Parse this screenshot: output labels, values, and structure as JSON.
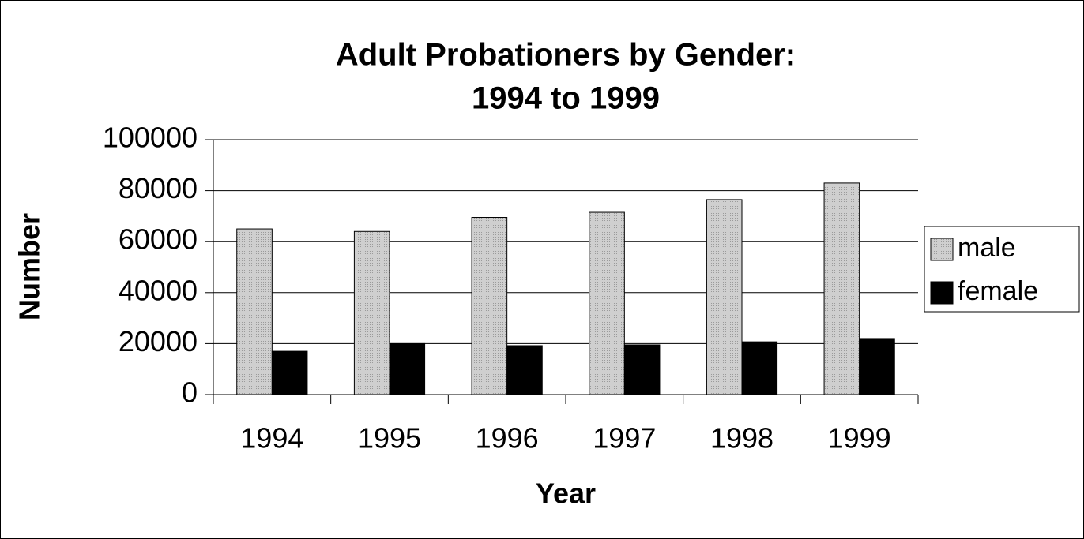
{
  "chart_data": {
    "type": "bar",
    "title": [
      "Adult Probationers by Gender:",
      "1994 to 1999"
    ],
    "x_label": "Year",
    "y_label": "Number",
    "categories": [
      "1994",
      "1995",
      "1996",
      "1997",
      "1998",
      "1999"
    ],
    "series": [
      {
        "name": "male",
        "color": "#c4c4c4",
        "values": [
          65000,
          64000,
          69500,
          71500,
          76500,
          83000
        ]
      },
      {
        "name": "female",
        "color": "#000000",
        "values": [
          17000,
          20000,
          19200,
          19500,
          20700,
          22000
        ]
      }
    ],
    "ylim": [
      0,
      100000
    ],
    "yticks": [
      0,
      20000,
      40000,
      60000,
      80000,
      100000
    ],
    "grid": true,
    "legend": "right"
  }
}
